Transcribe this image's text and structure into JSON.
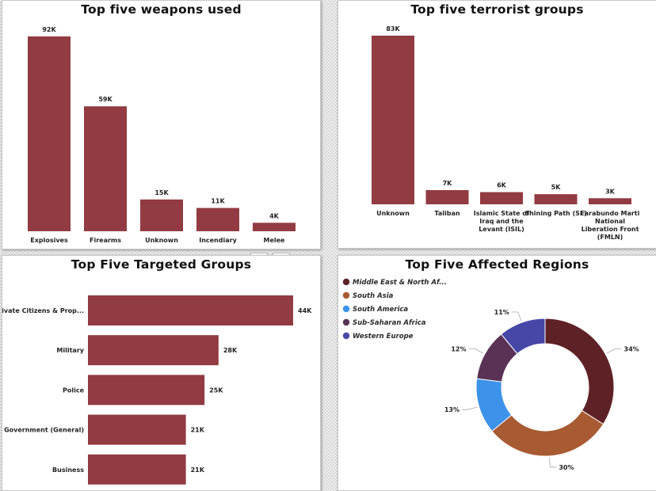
{
  "colors": {
    "bar": "#923b42",
    "pie": [
      "#5e2226",
      "#a85a32",
      "#3d93ea",
      "#5a3256",
      "#4747a8"
    ]
  },
  "chart_data": [
    {
      "type": "bar",
      "title": "Top five weapons used",
      "categories": [
        "Explosives",
        "Firearms",
        "Unknown",
        "Incendiary",
        "Melee"
      ],
      "values": [
        92,
        59,
        15,
        11,
        4
      ],
      "value_labels": [
        "92K",
        "59K",
        "15K",
        "11K",
        "4K"
      ],
      "unit": "K"
    },
    {
      "type": "bar",
      "title": "Top five terrorist groups",
      "categories": [
        [
          "Unknown"
        ],
        [
          "Taliban"
        ],
        [
          "Islamic State of",
          "Iraq and the",
          "Levant (ISIL)"
        ],
        [
          "Shining Path (SL)"
        ],
        [
          "Farabundo Marti",
          "National",
          "Liberation Front",
          "(FMLN)"
        ]
      ],
      "values": [
        83,
        7,
        6,
        5,
        3
      ],
      "value_labels": [
        "83K",
        "7K",
        "6K",
        "5K",
        "3K"
      ],
      "unit": "K"
    },
    {
      "type": "bar",
      "orientation": "horizontal",
      "title": "Top Five Targeted Groups",
      "categories": [
        "Private Citizens & Prop...",
        "Military",
        "Police",
        "Government (General)",
        "Business"
      ],
      "values": [
        44,
        28,
        25,
        21,
        21
      ],
      "value_labels": [
        "44K",
        "28K",
        "25K",
        "21K",
        "21K"
      ],
      "unit": "K"
    },
    {
      "type": "pie",
      "style": "donut",
      "title": "Top Five Affected Regions",
      "legend_position": "top-left",
      "labels": [
        "Middle East & North Af...",
        "South Asia",
        "South America",
        "Sub-Saharan Africa",
        "Western Europe"
      ],
      "values": [
        34,
        30,
        13,
        12,
        11
      ],
      "value_labels": [
        "34%",
        "30%",
        "13%",
        "12%",
        "11%"
      ],
      "unit": "%"
    }
  ]
}
